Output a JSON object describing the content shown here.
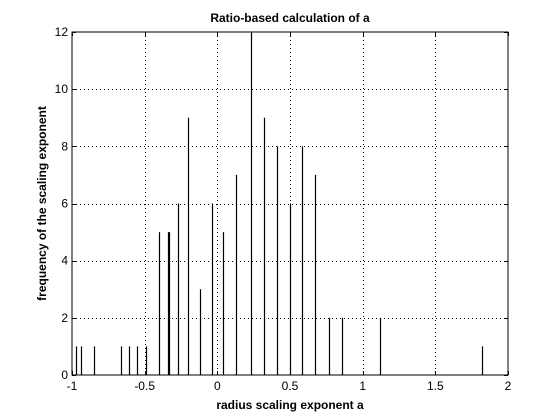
{
  "chart_data": {
    "type": "bar",
    "title": "Ratio-based calculation of a",
    "xlabel": "radius scaling exponent a",
    "ylabel": "frequency of the scaling exponent",
    "xlim": [
      -1,
      2
    ],
    "ylim": [
      0,
      12
    ],
    "grid": true,
    "legend": "none",
    "xticks": [
      -1,
      -0.5,
      0,
      0.5,
      1,
      1.5,
      2
    ],
    "xtick_labels": [
      "-1",
      "-0.5",
      "0",
      "0.5",
      "1",
      "1.5",
      "2"
    ],
    "yticks": [
      0,
      2,
      4,
      6,
      8,
      10,
      12
    ],
    "ytick_labels": [
      "0",
      "2",
      "4",
      "6",
      "8",
      "10",
      "12"
    ],
    "x": [
      -0.97,
      -0.94,
      -0.85,
      -0.66,
      -0.61,
      -0.55,
      -0.49,
      -0.4,
      -0.34,
      -0.33,
      -0.27,
      -0.2,
      -0.12,
      -0.04,
      0.04,
      0.13,
      0.23,
      0.32,
      0.41,
      0.5,
      0.58,
      0.67,
      0.77,
      0.86,
      1.12,
      1.82
    ],
    "values": [
      1,
      1,
      1,
      1,
      1,
      1,
      1,
      5,
      5,
      5,
      6,
      9,
      3,
      6,
      5,
      7,
      12,
      9,
      8,
      6,
      8,
      7,
      2,
      2,
      2,
      1
    ]
  }
}
